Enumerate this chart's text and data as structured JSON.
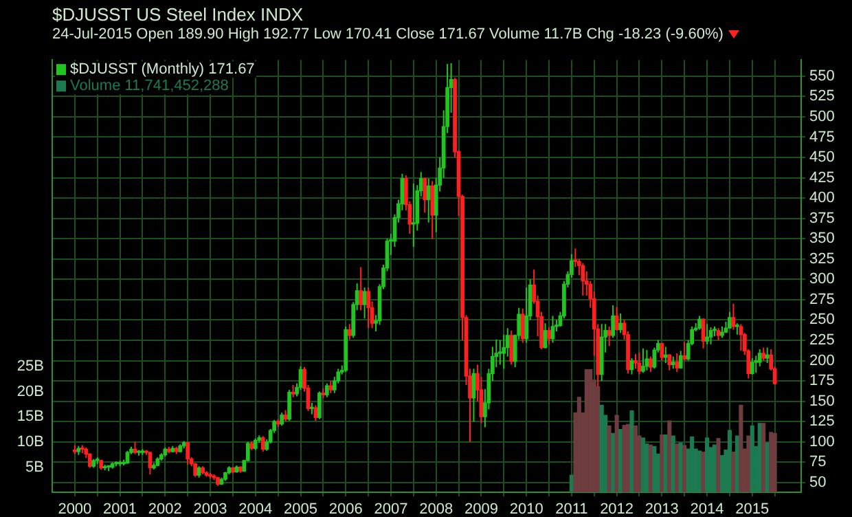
{
  "chart_data": {
    "type": "candlestick",
    "title": "$DJUSST US Steel Index INDX",
    "subtitle": "24-Jul-2015 Open 189.90 High 192.77 Low 170.41 Close 171.67 Volume 11.7B Chg -18.23 (-9.60%)",
    "legend": "top left",
    "grid": true,
    "xlim": [
      "1999-07",
      "2016-02"
    ],
    "xticks": [
      "2000",
      {
        "value": "2000-07",
        "label": null
      },
      "2001",
      {
        "value": "2001-07",
        "label": null
      },
      "2002",
      {
        "value": "2002-07",
        "label": null
      },
      "2003",
      {
        "value": "2003-07",
        "label": null
      },
      "2004",
      {
        "value": "2004-07",
        "label": null
      },
      "2005",
      {
        "value": "2005-07",
        "label": null
      },
      "2006",
      {
        "value": "2006-07",
        "label": null
      },
      "2007",
      {
        "value": "2007-07",
        "label": null
      },
      "2008",
      {
        "value": "2008-07",
        "label": null
      },
      "2009",
      {
        "value": "2009-07",
        "label": null
      },
      "2010",
      {
        "value": "2010-07",
        "label": null
      },
      "2011",
      {
        "value": "2011-07",
        "label": null
      },
      "2012",
      {
        "value": "2012-07",
        "label": null
      },
      "2013",
      {
        "value": "2013-07",
        "label": null
      },
      "2014",
      {
        "value": "2014-07",
        "label": null
      },
      "2015",
      {
        "value": "2015-07",
        "label": null
      }
    ],
    "ylim": [
      38,
      570
    ],
    "yticks": [
      50,
      75,
      100,
      125,
      150,
      175,
      200,
      225,
      250,
      275,
      300,
      325,
      350,
      375,
      400,
      425,
      450,
      475,
      500,
      525,
      550
    ],
    "y2lim": [
      0,
      86
    ],
    "y2ticks": [
      {
        "value": 5,
        "label": "5B"
      },
      {
        "value": 10,
        "label": "10B"
      },
      {
        "value": 15,
        "label": "15B"
      },
      {
        "value": 20,
        "label": "20B"
      },
      {
        "value": 25,
        "label": "25B"
      }
    ],
    "series": [
      {
        "name": "$DJUSST (Monthly) 171.67",
        "color": "#22c422",
        "x": [
          "2000-01",
          "2000-02",
          "2000-03",
          "2000-04",
          "2000-05",
          "2000-06",
          "2000-07",
          "2000-08",
          "2000-09",
          "2000-10",
          "2000-11",
          "2000-12",
          "2001-01",
          "2001-02",
          "2001-03",
          "2001-04",
          "2001-05",
          "2001-06",
          "2001-07",
          "2001-08",
          "2001-09",
          "2001-10",
          "2001-11",
          "2001-12",
          "2002-01",
          "2002-02",
          "2002-03",
          "2002-04",
          "2002-05",
          "2002-06",
          "2002-07",
          "2002-08",
          "2002-09",
          "2002-10",
          "2002-11",
          "2002-12",
          "2003-01",
          "2003-02",
          "2003-03",
          "2003-04",
          "2003-05",
          "2003-06",
          "2003-07",
          "2003-08",
          "2003-09",
          "2003-10",
          "2003-11",
          "2003-12",
          "2004-01",
          "2004-02",
          "2004-03",
          "2004-04",
          "2004-05",
          "2004-06",
          "2004-07",
          "2004-08",
          "2004-09",
          "2004-10",
          "2004-11",
          "2004-12",
          "2005-01",
          "2005-02",
          "2005-03",
          "2005-04",
          "2005-05",
          "2005-06",
          "2005-07",
          "2005-08",
          "2005-09",
          "2005-10",
          "2005-11",
          "2005-12",
          "2006-01",
          "2006-02",
          "2006-03",
          "2006-04",
          "2006-05",
          "2006-06",
          "2006-07",
          "2006-08",
          "2006-09",
          "2006-10",
          "2006-11",
          "2006-12",
          "2007-01",
          "2007-02",
          "2007-03",
          "2007-04",
          "2007-05",
          "2007-06",
          "2007-07",
          "2007-08",
          "2007-09",
          "2007-10",
          "2007-11",
          "2007-12",
          "2008-01",
          "2008-02",
          "2008-03",
          "2008-04",
          "2008-05",
          "2008-06",
          "2008-07",
          "2008-08",
          "2008-09",
          "2008-10",
          "2008-11",
          "2008-12",
          "2009-01",
          "2009-02",
          "2009-03",
          "2009-04",
          "2009-05",
          "2009-06",
          "2009-07",
          "2009-08",
          "2009-09",
          "2009-10",
          "2009-11",
          "2009-12",
          "2010-01",
          "2010-02",
          "2010-03",
          "2010-04",
          "2010-05",
          "2010-06",
          "2010-07",
          "2010-08",
          "2010-09",
          "2010-10",
          "2010-11",
          "2010-12",
          "2011-01",
          "2011-02",
          "2011-03",
          "2011-04",
          "2011-05",
          "2011-06",
          "2011-07",
          "2011-08",
          "2011-09",
          "2011-10",
          "2011-11",
          "2011-12",
          "2012-01",
          "2012-02",
          "2012-03",
          "2012-04",
          "2012-05",
          "2012-06",
          "2012-07",
          "2012-08",
          "2012-09",
          "2012-10",
          "2012-11",
          "2012-12",
          "2013-01",
          "2013-02",
          "2013-03",
          "2013-04",
          "2013-05",
          "2013-06",
          "2013-07",
          "2013-08",
          "2013-09",
          "2013-10",
          "2013-11",
          "2013-12",
          "2014-01",
          "2014-02",
          "2014-03",
          "2014-04",
          "2014-05",
          "2014-06",
          "2014-07",
          "2014-08",
          "2014-09",
          "2014-10",
          "2014-11",
          "2014-12",
          "2015-01",
          "2015-02",
          "2015-03",
          "2015-04",
          "2015-05",
          "2015-06",
          "2015-07"
        ],
        "ohlc": [
          [
            90,
            96,
            85,
            88
          ],
          [
            88,
            95,
            84,
            92
          ],
          [
            92,
            96,
            86,
            91
          ],
          [
            91,
            93,
            80,
            85
          ],
          [
            85,
            86,
            68,
            70
          ],
          [
            70,
            79,
            68,
            77
          ],
          [
            77,
            81,
            73,
            77
          ],
          [
            77,
            78,
            66,
            68
          ],
          [
            68,
            72,
            65,
            69
          ],
          [
            69,
            71,
            64,
            69
          ],
          [
            69,
            75,
            67,
            73
          ],
          [
            73,
            76,
            70,
            73
          ],
          [
            73,
            77,
            70,
            73
          ],
          [
            73,
            78,
            71,
            74
          ],
          [
            74,
            89,
            73,
            87
          ],
          [
            87,
            94,
            85,
            91
          ],
          [
            91,
            100,
            85,
            87
          ],
          [
            87,
            90,
            83,
            87
          ],
          [
            87,
            91,
            84,
            88
          ],
          [
            88,
            90,
            84,
            87
          ],
          [
            87,
            88,
            60,
            68
          ],
          [
            68,
            74,
            66,
            71
          ],
          [
            71,
            81,
            70,
            79
          ],
          [
            79,
            86,
            77,
            84
          ],
          [
            84,
            93,
            82,
            91
          ],
          [
            91,
            94,
            86,
            88
          ],
          [
            88,
            95,
            87,
            92
          ],
          [
            92,
            94,
            85,
            88
          ],
          [
            88,
            97,
            87,
            95
          ],
          [
            95,
            101,
            92,
            99
          ],
          [
            99,
            100,
            72,
            79
          ],
          [
            79,
            81,
            70,
            73
          ],
          [
            73,
            74,
            57,
            59
          ],
          [
            59,
            70,
            56,
            68
          ],
          [
            68,
            70,
            60,
            62
          ],
          [
            62,
            64,
            57,
            59
          ],
          [
            59,
            62,
            55,
            58
          ],
          [
            58,
            60,
            53,
            56
          ],
          [
            56,
            57,
            46,
            48
          ],
          [
            48,
            56,
            47,
            54
          ],
          [
            54,
            63,
            52,
            62
          ],
          [
            62,
            70,
            60,
            68
          ],
          [
            68,
            69,
            61,
            63
          ],
          [
            63,
            71,
            62,
            69
          ],
          [
            69,
            70,
            62,
            64
          ],
          [
            64,
            78,
            63,
            77
          ],
          [
            77,
            100,
            76,
            98
          ],
          [
            98,
            101,
            90,
            92
          ],
          [
            92,
            104,
            90,
            102
          ],
          [
            102,
            108,
            99,
            105
          ],
          [
            105,
            107,
            88,
            91
          ],
          [
            91,
            103,
            89,
            100
          ],
          [
            100,
            116,
            98,
            114
          ],
          [
            114,
            127,
            111,
            125
          ],
          [
            125,
            128,
            118,
            122
          ],
          [
            122,
            136,
            120,
            133
          ],
          [
            133,
            139,
            125,
            128
          ],
          [
            128,
            164,
            126,
            161
          ],
          [
            161,
            170,
            155,
            159
          ],
          [
            159,
            172,
            156,
            167
          ],
          [
            167,
            193,
            164,
            189
          ],
          [
            189,
            192,
            162,
            166
          ],
          [
            166,
            170,
            138,
            141
          ],
          [
            141,
            148,
            134,
            142
          ],
          [
            142,
            145,
            126,
            130
          ],
          [
            130,
            162,
            128,
            160
          ],
          [
            160,
            166,
            154,
            158
          ],
          [
            158,
            172,
            155,
            169
          ],
          [
            169,
            175,
            160,
            164
          ],
          [
            164,
            180,
            160,
            175
          ],
          [
            175,
            190,
            172,
            186
          ],
          [
            186,
            194,
            183,
            188
          ],
          [
            188,
            242,
            186,
            238
          ],
          [
            238,
            245,
            226,
            231
          ],
          [
            231,
            272,
            228,
            269
          ],
          [
            269,
            295,
            262,
            286
          ],
          [
            286,
            315,
            262,
            269
          ],
          [
            269,
            290,
            252,
            285
          ],
          [
            285,
            290,
            240,
            265
          ],
          [
            265,
            273,
            240,
            246
          ],
          [
            246,
            256,
            236,
            249
          ],
          [
            249,
            294,
            244,
            291
          ],
          [
            291,
            318,
            288,
            314
          ],
          [
            314,
            350,
            310,
            347
          ],
          [
            347,
            356,
            330,
            347
          ],
          [
            347,
            380,
            340,
            376
          ],
          [
            376,
            398,
            370,
            393
          ],
          [
            393,
            430,
            385,
            424
          ],
          [
            424,
            428,
            385,
            392
          ],
          [
            392,
            396,
            356,
            368
          ],
          [
            368,
            418,
            340,
            369
          ],
          [
            369,
            416,
            360,
            409
          ],
          [
            409,
            432,
            402,
            424
          ],
          [
            424,
            425,
            382,
            398
          ],
          [
            398,
            424,
            370,
            415
          ],
          [
            415,
            421,
            350,
            379
          ],
          [
            379,
            425,
            358,
            416
          ],
          [
            416,
            450,
            408,
            437
          ],
          [
            437,
            508,
            425,
            488
          ],
          [
            488,
            565,
            480,
            536
          ],
          [
            536,
            566,
            505,
            546
          ],
          [
            546,
            548,
            450,
            457
          ],
          [
            457,
            459,
            378,
            402
          ],
          [
            402,
            404,
            225,
            253
          ],
          [
            253,
            256,
            170,
            181
          ],
          [
            181,
            190,
            100,
            154
          ],
          [
            154,
            190,
            125,
            184
          ],
          [
            184,
            195,
            150,
            164
          ],
          [
            164,
            180,
            123,
            131
          ],
          [
            131,
            165,
            118,
            148
          ],
          [
            148,
            190,
            140,
            184
          ],
          [
            184,
            217,
            175,
            205
          ],
          [
            205,
            226,
            192,
            209
          ],
          [
            209,
            225,
            195,
            209
          ],
          [
            209,
            232,
            190,
            216
          ],
          [
            216,
            240,
            205,
            231
          ],
          [
            231,
            237,
            195,
            199
          ],
          [
            199,
            232,
            192,
            231
          ],
          [
            231,
            265,
            226,
            257
          ],
          [
            257,
            264,
            222,
            227
          ],
          [
            227,
            290,
            222,
            255
          ],
          [
            255,
            300,
            250,
            293
          ],
          [
            293,
            312,
            270,
            273
          ],
          [
            273,
            280,
            230,
            254
          ],
          [
            254,
            260,
            214,
            216
          ],
          [
            216,
            246,
            215,
            237
          ],
          [
            237,
            241,
            220,
            227
          ],
          [
            227,
            255,
            222,
            242
          ],
          [
            242,
            250,
            236,
            243
          ],
          [
            243,
            260,
            242,
            255
          ],
          [
            255,
            298,
            252,
            294
          ],
          [
            294,
            310,
            290,
            306
          ],
          [
            306,
            331,
            302,
            323
          ],
          [
            323,
            338,
            315,
            322
          ],
          [
            322,
            325,
            305,
            317
          ],
          [
            317,
            320,
            280,
            298
          ],
          [
            298,
            310,
            280,
            294
          ],
          [
            294,
            298,
            265,
            276
          ],
          [
            276,
            285,
            206,
            239
          ],
          [
            239,
            245,
            168,
            183
          ],
          [
            183,
            245,
            175,
            229
          ],
          [
            229,
            245,
            210,
            237
          ],
          [
            237,
            242,
            218,
            231
          ],
          [
            231,
            268,
            228,
            255
          ],
          [
            255,
            266,
            237,
            238
          ],
          [
            238,
            258,
            234,
            246
          ],
          [
            246,
            250,
            226,
            232
          ],
          [
            232,
            236,
            184,
            189
          ],
          [
            189,
            203,
            183,
            200
          ],
          [
            200,
            208,
            190,
            197
          ],
          [
            197,
            210,
            183,
            187
          ],
          [
            187,
            215,
            185,
            193
          ],
          [
            193,
            213,
            188,
            202
          ],
          [
            202,
            205,
            186,
            192
          ],
          [
            192,
            216,
            190,
            213
          ],
          [
            213,
            225,
            210,
            221
          ],
          [
            221,
            222,
            200,
            204
          ],
          [
            204,
            217,
            197,
            207
          ],
          [
            207,
            208,
            188,
            195
          ],
          [
            195,
            205,
            190,
            198
          ],
          [
            198,
            209,
            186,
            191
          ],
          [
            191,
            212,
            190,
            206
          ],
          [
            206,
            223,
            200,
            202
          ],
          [
            202,
            225,
            200,
            221
          ],
          [
            221,
            242,
            219,
            238
          ],
          [
            238,
            246,
            236,
            240
          ],
          [
            240,
            255,
            238,
            251
          ],
          [
            251,
            252,
            215,
            224
          ],
          [
            224,
            245,
            220,
            229
          ],
          [
            229,
            241,
            220,
            237
          ],
          [
            237,
            242,
            230,
            237
          ],
          [
            237,
            240,
            225,
            231
          ],
          [
            231,
            242,
            228,
            235
          ],
          [
            235,
            248,
            234,
            240
          ],
          [
            240,
            260,
            240,
            253
          ],
          [
            253,
            270,
            238,
            242
          ],
          [
            242,
            246,
            232,
            242
          ],
          [
            242,
            245,
            212,
            232
          ],
          [
            232,
            234,
            207,
            212
          ],
          [
            212,
            214,
            178,
            184
          ],
          [
            184,
            203,
            183,
            198
          ],
          [
            198,
            206,
            185,
            198
          ],
          [
            198,
            214,
            193,
            209
          ],
          [
            209,
            216,
            200,
            203
          ],
          [
            203,
            216,
            197,
            207
          ],
          [
            207,
            214,
            188,
            189.9
          ],
          [
            189.9,
            192.77,
            170.41,
            171.67
          ]
        ],
        "colors": [
          "#ff2020",
          "#22c422",
          "#ff2020",
          "#ff2020",
          "#ff2020",
          "#22c422",
          "#22c422",
          "#ff2020",
          "#22c422",
          "#22c422",
          "#22c422",
          "#22c422",
          "#22c422",
          "#22c422",
          "#22c422",
          "#22c422",
          "#ff2020",
          "#22c422",
          "#22c422",
          "#ff2020",
          "#ff2020",
          "#22c422",
          "#22c422",
          "#22c422",
          "#22c422",
          "#ff2020",
          "#22c422",
          "#ff2020",
          "#22c422",
          "#22c422",
          "#ff2020",
          "#ff2020",
          "#ff2020",
          "#22c422",
          "#ff2020",
          "#ff2020",
          "#ff2020",
          "#ff2020",
          "#ff2020",
          "#22c422",
          "#22c422",
          "#22c422",
          "#ff2020",
          "#22c422",
          "#ff2020",
          "#22c422",
          "#22c422",
          "#ff2020",
          "#22c422",
          "#22c422",
          "#ff2020",
          "#22c422",
          "#22c422",
          "#22c422",
          "#ff2020",
          "#22c422",
          "#ff2020",
          "#22c422",
          "#ff2020",
          "#22c422",
          "#22c422",
          "#ff2020",
          "#ff2020",
          "#22c422",
          "#ff2020",
          "#22c422",
          "#ff2020",
          "#22c422",
          "#ff2020",
          "#22c422",
          "#22c422",
          "#22c422",
          "#22c422",
          "#ff2020",
          "#22c422",
          "#22c422",
          "#ff2020",
          "#22c422",
          "#ff2020",
          "#ff2020",
          "#22c422",
          "#22c422",
          "#22c422",
          "#22c422",
          "#22c422",
          "#22c422",
          "#22c422",
          "#22c422",
          "#ff2020",
          "#ff2020",
          "#22c422",
          "#22c422",
          "#22c422",
          "#ff2020",
          "#22c422",
          "#ff2020",
          "#22c422",
          "#22c422",
          "#22c422",
          "#22c422",
          "#22c422",
          "#ff2020",
          "#ff2020",
          "#ff2020",
          "#ff2020",
          "#ff2020",
          "#22c422",
          "#ff2020",
          "#ff2020",
          "#22c422",
          "#22c422",
          "#22c422",
          "#22c422",
          "#22c422",
          "#22c422",
          "#22c422",
          "#ff2020",
          "#22c422",
          "#22c422",
          "#ff2020",
          "#22c422",
          "#22c422",
          "#ff2020",
          "#ff2020",
          "#ff2020",
          "#22c422",
          "#ff2020",
          "#22c422",
          "#22c422",
          "#22c422",
          "#22c422",
          "#22c422",
          "#22c422",
          "#ff2020",
          "#ff2020",
          "#ff2020",
          "#ff2020",
          "#ff2020",
          "#ff2020",
          "#ff2020",
          "#22c422",
          "#22c422",
          "#ff2020",
          "#22c422",
          "#ff2020",
          "#22c422",
          "#ff2020",
          "#ff2020",
          "#22c422",
          "#ff2020",
          "#ff2020",
          "#22c422",
          "#22c422",
          "#ff2020",
          "#22c422",
          "#22c422",
          "#ff2020",
          "#22c422",
          "#ff2020",
          "#22c422",
          "#ff2020",
          "#22c422",
          "#ff2020",
          "#22c422",
          "#22c422",
          "#22c422",
          "#22c422",
          "#ff2020",
          "#22c422",
          "#22c422",
          "#22c422",
          "#ff2020",
          "#22c422",
          "#22c422",
          "#22c422",
          "#ff2020",
          "#22c422",
          "#ff2020",
          "#ff2020",
          "#ff2020",
          "#22c422",
          "#22c422",
          "#22c422",
          "#ff2020",
          "#22c422",
          "#ff2020",
          "#ff2020"
        ]
      },
      {
        "type": "bar",
        "name": "Volume 11,741,452,288",
        "axis": "y2",
        "color": "#1d7a50",
        "x": [
          "2011-01",
          "2011-02",
          "2011-03",
          "2011-04",
          "2011-05",
          "2011-06",
          "2011-07",
          "2011-08",
          "2011-09",
          "2011-10",
          "2011-11",
          "2011-12",
          "2012-01",
          "2012-02",
          "2012-03",
          "2012-04",
          "2012-05",
          "2012-06",
          "2012-07",
          "2012-08",
          "2012-09",
          "2012-10",
          "2012-11",
          "2012-12",
          "2013-01",
          "2013-02",
          "2013-03",
          "2013-04",
          "2013-05",
          "2013-06",
          "2013-07",
          "2013-08",
          "2013-09",
          "2013-10",
          "2013-11",
          "2013-12",
          "2014-01",
          "2014-02",
          "2014-03",
          "2014-04",
          "2014-05",
          "2014-06",
          "2014-07",
          "2014-08",
          "2014-09",
          "2014-10",
          "2014-11",
          "2014-12",
          "2015-01",
          "2015-02",
          "2015-03",
          "2015-04",
          "2015-05",
          "2015-06",
          "2015-07"
        ],
        "values": [
          3.4,
          15.8,
          18.9,
          15.8,
          24.4,
          24.4,
          22.3,
          21.0,
          17.3,
          15.3,
          13.2,
          11.7,
          15.3,
          12.5,
          13.3,
          13.5,
          16.2,
          13.2,
          11.2,
          10.8,
          9.6,
          9.4,
          9.1,
          7.6,
          11.4,
          11.4,
          14.2,
          11.2,
          9.6,
          9.8,
          9.3,
          8.6,
          11.0,
          8.6,
          8.2,
          8.0,
          10.8,
          8.9,
          9.4,
          10.7,
          7.3,
          8.4,
          12.3,
          8.0,
          11.2,
          17.3,
          8.6,
          11.2,
          13.2,
          9.1,
          13.7,
          13.7,
          9.8,
          11.9,
          11.7
        ],
        "colors": [
          "#1d7a50",
          "#6e3d40",
          "#6e3d40",
          "#6e3d40",
          "#6e3d40",
          "#6e3d40",
          "#6e3d40",
          "#6e3d40",
          "#1d7a50",
          "#1d7a50",
          "#6e3d40",
          "#1d7a50",
          "#6e3d40",
          "#1d7a50",
          "#6e3d40",
          "#6e3d40",
          "#1d7a50",
          "#6e3d40",
          "#6e3d40",
          "#1d7a50",
          "#1d7a50",
          "#6e3d40",
          "#1d7a50",
          "#1d7a50",
          "#6e3d40",
          "#1d7a50",
          "#6e3d40",
          "#1d7a50",
          "#6e3d40",
          "#1d7a50",
          "#6e3d40",
          "#1d7a50",
          "#1d7a50",
          "#1d7a50",
          "#1d7a50",
          "#6e3d40",
          "#1d7a50",
          "#1d7a50",
          "#1d7a50",
          "#6e3d40",
          "#1d7a50",
          "#1d7a50",
          "#1d7a50",
          "#6e3d40",
          "#1d7a50",
          "#6e3d40",
          "#6e3d40",
          "#6e3d40",
          "#1d7a50",
          "#1d7a50",
          "#1d7a50",
          "#6e3d40",
          "#1d7a50",
          "#6e3d40",
          "#6e3d40"
        ]
      }
    ]
  }
}
